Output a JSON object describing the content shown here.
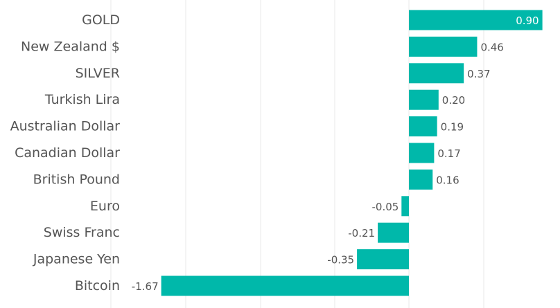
{
  "chart_data": {
    "type": "bar",
    "orientation": "horizontal",
    "bar_color": "#00B8AA",
    "grid": true,
    "xlim": [
      -1.67,
      0.9
    ],
    "categories": [
      "GOLD",
      "New Zealand $",
      "SILVER",
      "Turkish Lira",
      "Australian Dollar",
      "Canadian Dollar",
      "British Pound",
      "Euro",
      "Swiss Franc",
      "Japanese Yen",
      "Bitcoin"
    ],
    "values": [
      0.9,
      0.46,
      0.37,
      0.2,
      0.19,
      0.17,
      0.16,
      -0.05,
      -0.21,
      -0.35,
      -1.67
    ],
    "value_labels": [
      "0.90",
      "0.46",
      "0.37",
      "0.20",
      "0.19",
      "0.17",
      "0.16",
      "-0.05",
      "-0.21",
      "-0.35",
      "-1.67"
    ]
  }
}
